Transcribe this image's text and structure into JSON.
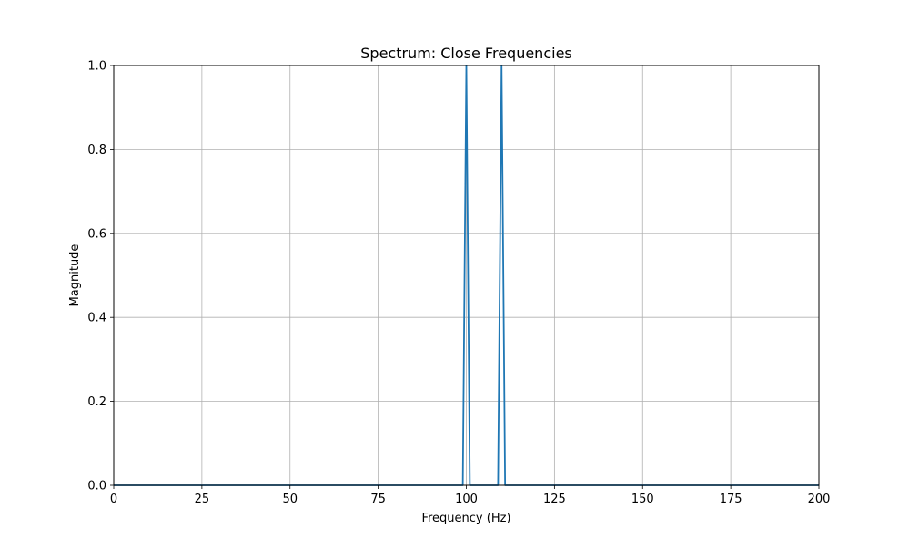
{
  "chart_data": {
    "type": "line",
    "title": "Spectrum: Close Frequencies",
    "xlabel": "Frequency (Hz)",
    "ylabel": "Magnitude",
    "xlim": [
      0,
      200
    ],
    "ylim": [
      0,
      1.0
    ],
    "xticks": [
      0,
      25,
      50,
      75,
      100,
      125,
      150,
      175,
      200
    ],
    "xtick_labels": [
      "0",
      "25",
      "50",
      "75",
      "100",
      "125",
      "150",
      "175",
      "200"
    ],
    "yticks": [
      0.0,
      0.2,
      0.4,
      0.6,
      0.8,
      1.0
    ],
    "ytick_labels": [
      "0.0",
      "0.2",
      "0.4",
      "0.6",
      "0.8",
      "1.0"
    ],
    "grid": true,
    "series": [
      {
        "color": "#1f77b4",
        "x": [
          0,
          99,
          100,
          101,
          109,
          110,
          111,
          200
        ],
        "y": [
          0,
          0,
          1.0,
          0,
          0,
          1.0,
          0,
          0
        ]
      }
    ]
  }
}
